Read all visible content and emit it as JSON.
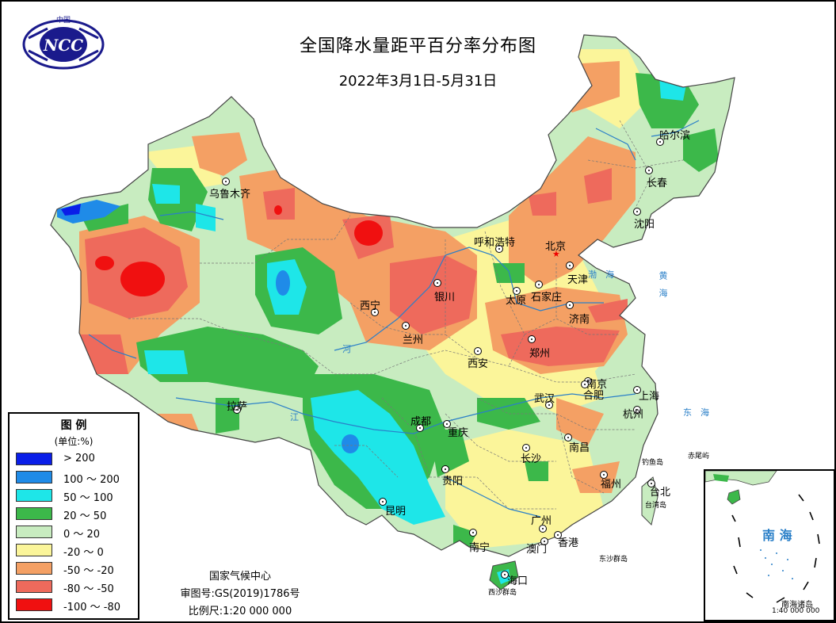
{
  "header": {
    "logo_text": "NCC",
    "logo_arc": "中国",
    "title": "全国降水量距平百分率分布图",
    "subtitle": "2022年3月1日-5月31日"
  },
  "legend": {
    "title": "图 例",
    "unit": "(单位:%)",
    "items": [
      {
        "label": "> 200",
        "color": "#0a1ee8"
      },
      {
        "label": "100 ～ 200",
        "color": "#1f8be8"
      },
      {
        "label": "50 ～ 100",
        "color": "#1ee6e8"
      },
      {
        "label": "20 ～ 50",
        "color": "#3cb84a"
      },
      {
        "label": "0 ～ 20",
        "color": "#c8ecc0"
      },
      {
        "label": "-20 ～ 0",
        "color": "#fbf59a"
      },
      {
        "label": "-50 ～ -20",
        "color": "#f4a064"
      },
      {
        "label": "-80 ～ -50",
        "color": "#ee6a5c"
      },
      {
        "label": "-100 ～ -80",
        "color": "#f01010"
      }
    ]
  },
  "credits": {
    "agency": "国家气候中心",
    "approval": "审图号:GS(2019)1786号",
    "scale": "比例尺:1:20 000 000"
  },
  "cities": [
    {
      "name": "乌鲁木齐"
    },
    {
      "name": "哈尔滨"
    },
    {
      "name": "长春"
    },
    {
      "name": "沈阳"
    },
    {
      "name": "呼和浩特"
    },
    {
      "name": "北京"
    },
    {
      "name": "天津"
    },
    {
      "name": "银川"
    },
    {
      "name": "太原"
    },
    {
      "name": "石家庄"
    },
    {
      "name": "西宁"
    },
    {
      "name": "济南"
    },
    {
      "name": "兰州"
    },
    {
      "name": "郑州"
    },
    {
      "name": "西安"
    },
    {
      "name": "南京"
    },
    {
      "name": "合肥"
    },
    {
      "name": "上海"
    },
    {
      "name": "武汉"
    },
    {
      "name": "拉萨"
    },
    {
      "name": "成都"
    },
    {
      "name": "杭州"
    },
    {
      "name": "重庆"
    },
    {
      "name": "南昌"
    },
    {
      "name": "长沙"
    },
    {
      "name": "贵阳"
    },
    {
      "name": "福州"
    },
    {
      "name": "台北"
    },
    {
      "name": "昆明"
    },
    {
      "name": "广州"
    },
    {
      "name": "南宁"
    },
    {
      "name": "澳门"
    },
    {
      "name": "香港"
    },
    {
      "name": "海口"
    }
  ],
  "small_labels": {
    "east_sea": "东　海",
    "yellow_sea": "黄　海",
    "bohai": "渤　海",
    "diaoyu": "钓鱼岛",
    "chiwei": "赤尾屿",
    "penghu": "台湾岛",
    "dongsha": "东沙群岛",
    "xisha": "西沙群岛",
    "river_yangtze": "江",
    "river_yellow": "河"
  },
  "inset": {
    "sea_label": "南 海",
    "caption": "南海诸岛",
    "scale": "1:40 000 000"
  }
}
